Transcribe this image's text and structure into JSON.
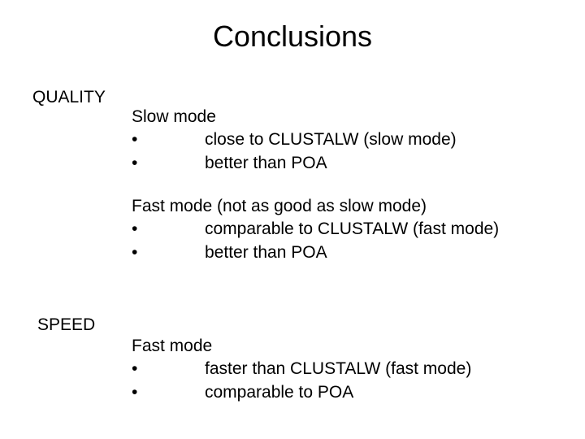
{
  "title": "Conclusions",
  "labels": {
    "quality": "QUALITY",
    "speed": "SPEED"
  },
  "blocks": {
    "slow": {
      "heading": "Slow mode",
      "bullets": [
        "close to CLUSTALW (slow mode)",
        "better than POA"
      ]
    },
    "fastq": {
      "heading": "Fast mode (not as good as slow mode)",
      "bullets": [
        "comparable to CLUSTALW (fast mode)",
        "better than POA"
      ]
    },
    "speed": {
      "heading": "Fast mode",
      "bullets": [
        "faster than CLUSTALW (fast mode)",
        "comparable to POA"
      ]
    }
  },
  "bullet_char": "•",
  "style": {
    "background_color": "#ffffff",
    "text_color": "#000000",
    "title_fontsize": 36,
    "body_fontsize": 21,
    "font_family": "Arial"
  }
}
